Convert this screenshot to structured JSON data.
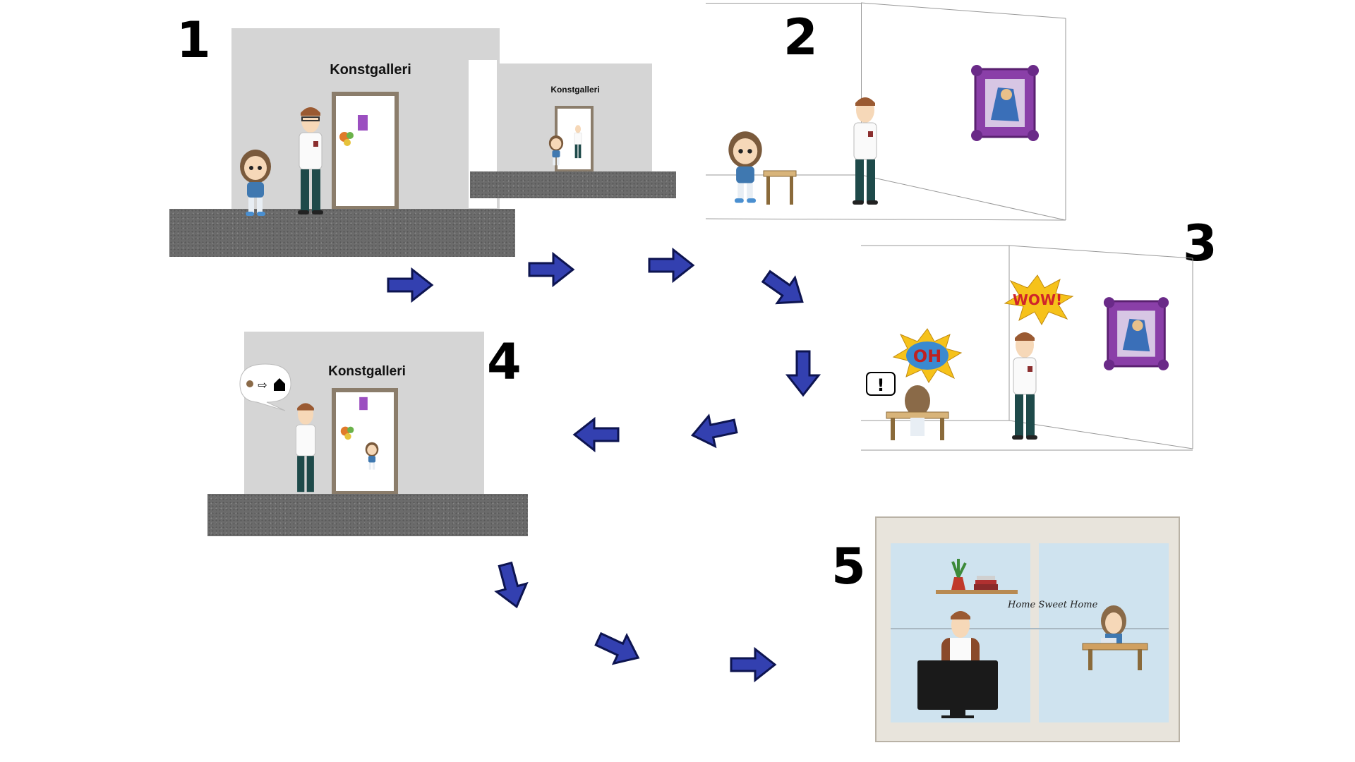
{
  "steps": [
    {
      "number": "1",
      "sign": "Konstgalleri",
      "inner_sign": "Konstgalleri"
    },
    {
      "number": "2"
    },
    {
      "number": "3",
      "bubble_wow": "WOW!",
      "bubble_oh": "OH"
    },
    {
      "number": "4",
      "sign": "Konstgalleri"
    },
    {
      "number": "5",
      "wall_text": "Home Sweet Home"
    }
  ],
  "colors": {
    "arrow": "#3340b0",
    "wall": "#d5d5d5",
    "window_frame": "#e8e4dc",
    "window_glass": "#cfe3ef",
    "frame": "#8a3fa8"
  }
}
